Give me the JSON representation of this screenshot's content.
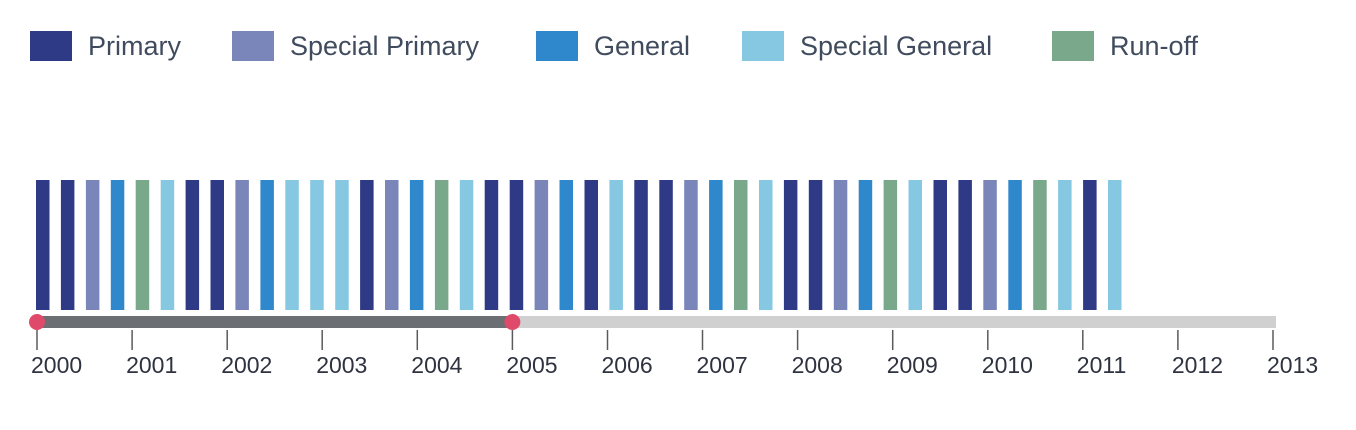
{
  "legend": [
    {
      "key": "primary",
      "label": "Primary",
      "color": "#2e3a85"
    },
    {
      "key": "special_primary",
      "label": "Special Primary",
      "color": "#7a86ba"
    },
    {
      "key": "general",
      "label": "General",
      "color": "#2f88cc"
    },
    {
      "key": "special_general",
      "label": "Special General",
      "color": "#86c8e2"
    },
    {
      "key": "runoff",
      "label": "Run-off",
      "color": "#7aa88a"
    }
  ],
  "timeline": {
    "years": [
      "2000",
      "2001",
      "2002",
      "2003",
      "2004",
      "2005",
      "2006",
      "2007",
      "2008",
      "2009",
      "2010",
      "2011",
      "2012",
      "2013"
    ],
    "year_start": 2000,
    "year_end": 2013,
    "selection": {
      "start": 2000,
      "end": 2005
    },
    "colors": {
      "track": "#d0d0d0",
      "selected": "#6b6e73",
      "handle": "#e04a6a",
      "tick": "#5a5a5a"
    }
  },
  "elections": [
    "primary",
    "primary",
    "special_primary",
    "general",
    "runoff",
    "special_general",
    "primary",
    "primary",
    "special_primary",
    "general",
    "special_general",
    "special_general",
    "special_general",
    "primary",
    "special_primary",
    "general",
    "runoff",
    "special_general",
    "primary",
    "primary",
    "special_primary",
    "general",
    "primary",
    "special_general",
    "primary",
    "primary",
    "special_primary",
    "general",
    "runoff",
    "special_general",
    "primary",
    "primary",
    "special_primary",
    "general",
    "runoff",
    "special_general",
    "primary",
    "primary",
    "special_primary",
    "general",
    "runoff",
    "special_general",
    "primary",
    "special_general"
  ]
}
